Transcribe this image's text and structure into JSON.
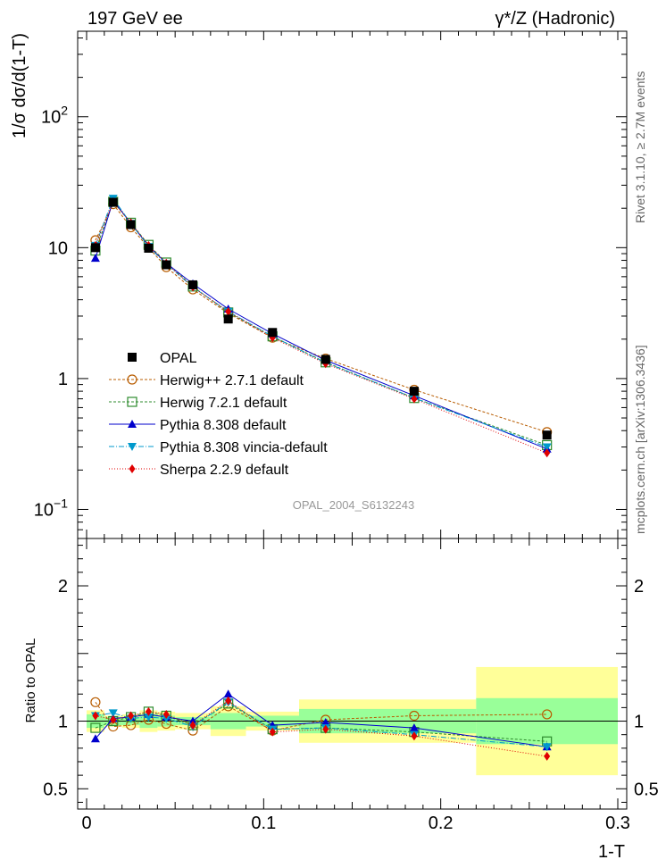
{
  "header": {
    "left": "197 GeV ee",
    "right": "γ*/Z (Hadronic)"
  },
  "side_notes": {
    "rivet": "Rivet 3.1.10, ≥ 2.7M events",
    "mcplots": "mcplots.cern.ch [arXiv:1306.3436]"
  },
  "analysis_id": "OPAL_2004_S6132243",
  "colors": {
    "yellow_band": "#ffff99",
    "green_band": "#99ff99",
    "data": "#000000"
  },
  "chart_data": [
    {
      "type": "scatter",
      "scale": "log",
      "ylabel": "1/σ dσ/d(1-T)",
      "xlim": [
        0,
        0.3
      ],
      "ylim": [
        0.06,
        450
      ],
      "y_ticks": [
        {
          "value": 0.1,
          "label": "10",
          "sup": "−1"
        },
        {
          "value": 1,
          "label": "1",
          "sup": ""
        },
        {
          "value": 10,
          "label": "10",
          "sup": ""
        },
        {
          "value": 100,
          "label": "10",
          "sup": "2"
        }
      ],
      "x": [
        0.005,
        0.015,
        0.025,
        0.035,
        0.045,
        0.06,
        0.08,
        0.105,
        0.135,
        0.185,
        0.26
      ],
      "data": {
        "name": "OPAL",
        "values": [
          10.0,
          22.2,
          15.0,
          9.9,
          7.4,
          5.2,
          2.85,
          2.25,
          1.4,
          0.8,
          0.37
        ]
      },
      "series": [
        {
          "name": "Herwig++ 2.7.1 default",
          "color": "#b85c00",
          "marker": "circle-open",
          "dash": "3,2",
          "values": [
            11.4,
            21.5,
            14.3,
            10.0,
            7.1,
            4.8,
            3.15,
            2.05,
            1.42,
            0.82,
            0.39
          ]
        },
        {
          "name": "Herwig 7.2.1 default",
          "color": "#2e8b2e",
          "marker": "square-open",
          "dash": "3,2",
          "values": [
            9.5,
            22.4,
            15.5,
            10.5,
            7.7,
            5.05,
            3.2,
            2.1,
            1.33,
            0.71,
            0.31
          ]
        },
        {
          "name": "Pythia 8.308 default",
          "color": "#0000cc",
          "marker": "triangle-up",
          "dash": "",
          "values": [
            8.3,
            23.0,
            15.3,
            10.3,
            7.6,
            5.3,
            3.4,
            2.2,
            1.38,
            0.74,
            0.29
          ]
        },
        {
          "name": "Pythia 8.308 vincia-default",
          "color": "#0099cc",
          "marker": "triangle-down",
          "dash": "6,2,1,2",
          "values": [
            10.4,
            23.8,
            15.3,
            10.2,
            7.5,
            5.0,
            3.25,
            2.1,
            1.32,
            0.71,
            0.3
          ]
        },
        {
          "name": "Sherpa 2.2.9 default",
          "color": "#e00000",
          "marker": "diamond",
          "dash": "1,2",
          "values": [
            10.4,
            22.4,
            15.5,
            10.4,
            7.6,
            5.0,
            3.25,
            2.05,
            1.3,
            0.7,
            0.27
          ]
        }
      ]
    },
    {
      "type": "scatter",
      "scale": "linear",
      "ylabel": "Ratio to OPAL",
      "xlabel": "1-T",
      "xlim": [
        0,
        0.3
      ],
      "ylim": [
        0.35,
        2.35
      ],
      "x_ticks": [
        {
          "value": 0,
          "label": "0"
        },
        {
          "value": 0.1,
          "label": "0.1"
        },
        {
          "value": 0.2,
          "label": "0.2"
        },
        {
          "value": 0.3,
          "label": "0.3"
        }
      ],
      "y_ticks": [
        {
          "value": 0.5,
          "label": "0.5"
        },
        {
          "value": 1,
          "label": "1"
        },
        {
          "value": 2,
          "label": "2"
        }
      ],
      "bins": [
        {
          "lo": 0.0,
          "hi": 0.01,
          "yellow": [
            0.92,
            1.08
          ],
          "green": [
            0.95,
            1.05
          ]
        },
        {
          "lo": 0.01,
          "hi": 0.02,
          "yellow": [
            0.96,
            1.04
          ],
          "green": [
            0.97,
            1.03
          ]
        },
        {
          "lo": 0.02,
          "hi": 0.03,
          "yellow": [
            0.95,
            1.05
          ],
          "green": [
            0.97,
            1.03
          ]
        },
        {
          "lo": 0.03,
          "hi": 0.04,
          "yellow": [
            0.92,
            1.08
          ],
          "green": [
            0.95,
            1.05
          ]
        },
        {
          "lo": 0.04,
          "hi": 0.05,
          "yellow": [
            0.93,
            1.07
          ],
          "green": [
            0.96,
            1.04
          ]
        },
        {
          "lo": 0.05,
          "hi": 0.07,
          "yellow": [
            0.94,
            1.06
          ],
          "green": [
            0.97,
            1.03
          ]
        },
        {
          "lo": 0.07,
          "hi": 0.09,
          "yellow": [
            0.89,
            1.11
          ],
          "green": [
            0.94,
            1.06
          ]
        },
        {
          "lo": 0.09,
          "hi": 0.12,
          "yellow": [
            0.93,
            1.07
          ],
          "green": [
            0.96,
            1.04
          ]
        },
        {
          "lo": 0.12,
          "hi": 0.15,
          "yellow": [
            0.84,
            1.16
          ],
          "green": [
            0.91,
            1.09
          ]
        },
        {
          "lo": 0.15,
          "hi": 0.22,
          "yellow": [
            0.84,
            1.16
          ],
          "green": [
            0.91,
            1.09
          ]
        },
        {
          "lo": 0.22,
          "hi": 0.3,
          "yellow": [
            0.6,
            1.4
          ],
          "green": [
            0.83,
            1.17
          ]
        }
      ],
      "series": [
        {
          "name": "Herwig++ 2.7.1 default",
          "values": [
            1.14,
            0.96,
            0.97,
            1.01,
            0.98,
            0.93,
            1.11,
            0.93,
            1.01,
            1.04,
            1.05
          ]
        },
        {
          "name": "Herwig 7.2.1 default",
          "values": [
            0.95,
            1.0,
            1.03,
            1.07,
            1.04,
            0.97,
            1.13,
            0.94,
            0.95,
            0.92,
            0.85
          ]
        },
        {
          "name": "Pythia 8.308 default",
          "values": [
            0.87,
            1.02,
            1.03,
            1.05,
            1.03,
            1.0,
            1.2,
            0.97,
            0.99,
            0.95,
            0.81
          ]
        },
        {
          "name": "Pythia 8.308 vincia-default",
          "values": [
            1.04,
            1.06,
            1.02,
            1.03,
            1.02,
            0.96,
            1.14,
            0.94,
            0.95,
            0.9,
            0.81
          ]
        },
        {
          "name": "Sherpa 2.2.9 default",
          "values": [
            1.04,
            1.01,
            1.04,
            1.07,
            1.05,
            0.97,
            1.15,
            0.92,
            0.94,
            0.89,
            0.74
          ]
        }
      ]
    }
  ]
}
